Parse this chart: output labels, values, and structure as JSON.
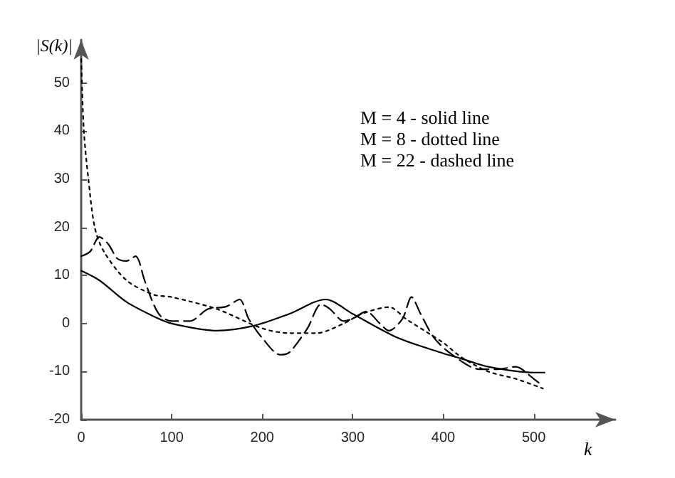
{
  "chart_data": {
    "type": "line",
    "xlabel": "k",
    "ylabel": "|S(k)|",
    "xlim": [
      0,
      590
    ],
    "xticks": [
      0,
      100,
      200,
      300,
      400,
      500
    ],
    "ylim": [
      -20,
      59
    ],
    "yticks": [
      -20,
      -10,
      0,
      10,
      20,
      30,
      40,
      50
    ],
    "grid": false,
    "marker": "none",
    "annotations": [
      "M = 4 - solid line",
      "M = 8 - dotted line",
      "M = 22 - dashed line"
    ],
    "series": [
      {
        "color": "#000000",
        "line_style": "solid",
        "x": [
          0,
          20,
          50,
          80,
          100,
          150,
          190,
          230,
          270,
          300,
          350,
          400,
          420,
          450,
          500,
          512
        ],
        "values": [
          11,
          9,
          4.5,
          1.5,
          0,
          -1.5,
          -0.5,
          2,
          5,
          2,
          -3,
          -6.2,
          -7.3,
          -9,
          -10.2,
          -10.2
        ]
      },
      {
        "color": "#000000",
        "line_style": "dotted",
        "x": [
          0,
          3,
          8,
          15,
          25,
          50,
          80,
          100,
          150,
          200,
          230,
          260,
          290,
          310,
          340,
          360,
          400,
          420,
          450,
          480,
          510
        ],
        "values": [
          55,
          40,
          30,
          20,
          15,
          9,
          6,
          5.5,
          3,
          -1,
          -2,
          -2,
          0,
          2,
          3.4,
          0.8,
          -4,
          -7,
          -10,
          -11.5,
          -13.5
        ]
      },
      {
        "color": "#000000",
        "line_style": "dashed",
        "x": [
          0,
          10,
          20,
          30,
          40,
          50,
          60,
          70,
          80,
          88,
          100,
          120,
          140,
          160,
          175,
          185,
          200,
          220,
          230,
          250,
          265,
          275,
          290,
          300,
          315,
          330,
          340,
          355,
          365,
          375,
          390,
          410,
          440,
          460,
          480,
          500,
          510
        ],
        "values": [
          14,
          15,
          18,
          16.5,
          13.5,
          13,
          14,
          9,
          4,
          1.5,
          0.5,
          0.5,
          3,
          3.5,
          5,
          1,
          -3,
          -6.5,
          -6,
          -1,
          4,
          3,
          0.5,
          1,
          2.5,
          0,
          -1.5,
          1,
          5.5,
          2,
          -3,
          -6.5,
          -9.5,
          -9.5,
          -9,
          -11.5,
          -13
        ]
      }
    ]
  }
}
